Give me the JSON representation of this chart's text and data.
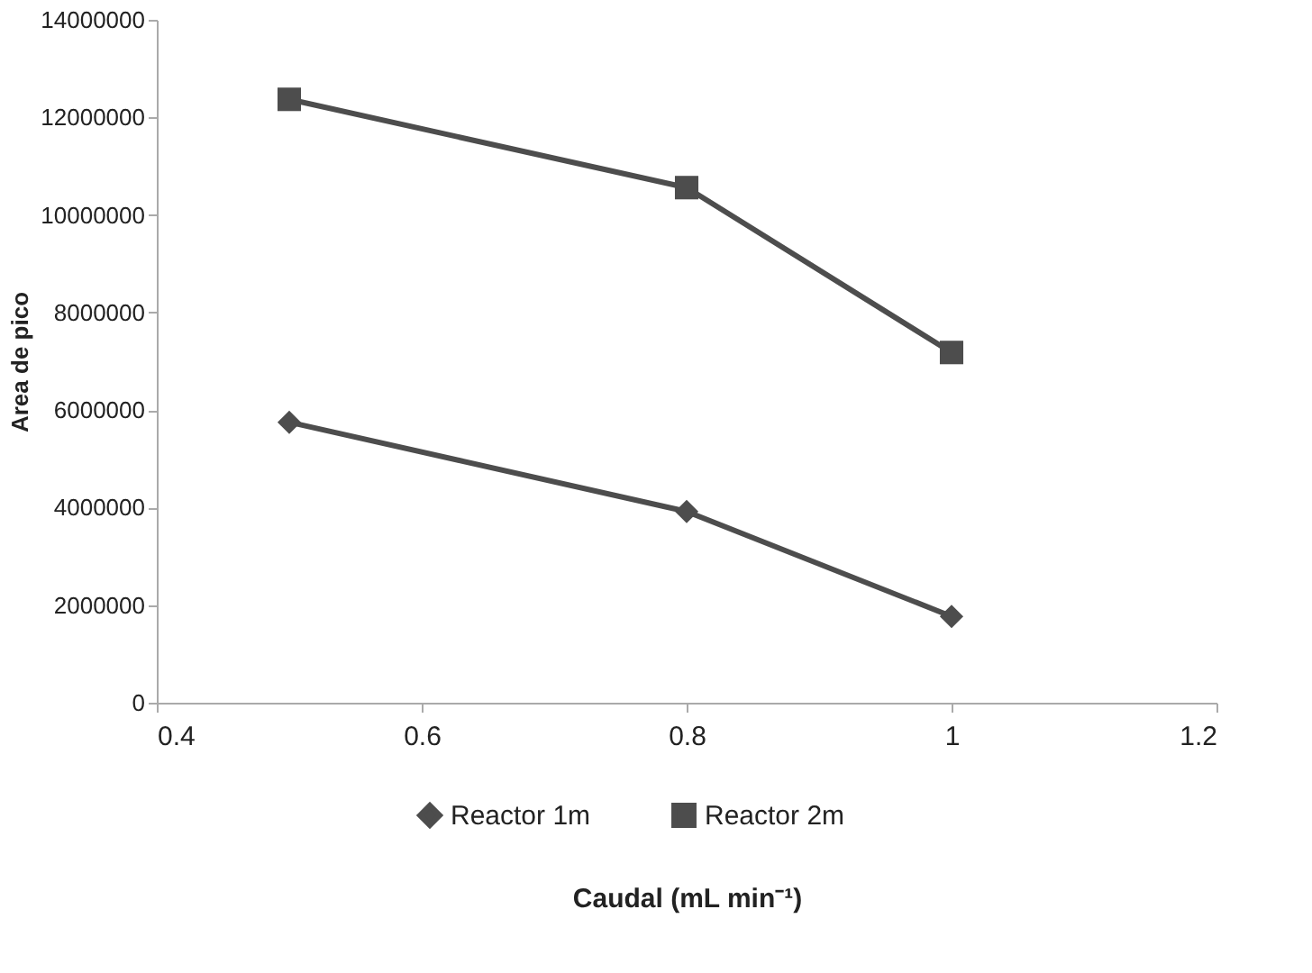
{
  "chart_data": {
    "type": "line",
    "xlabel": "Caudal (mL min⁻¹)",
    "ylabel": "Area de pico",
    "x": [
      0.5,
      0.8,
      1
    ],
    "series": [
      {
        "name": "Reactor 1m",
        "color": "#4d4d4d",
        "marker": "diamond",
        "values": [
          5750000,
          3920000,
          1770000
        ]
      },
      {
        "name": "Reactor 2m",
        "color": "#4d4d4d",
        "marker": "square",
        "values": [
          12370000,
          10560000,
          7180000
        ]
      }
    ],
    "xlim": [
      0.4,
      1.2
    ],
    "xticks": [
      0.4,
      0.6,
      0.8,
      1,
      1.2
    ],
    "ylim": [
      0,
      14000000
    ],
    "yticks": [
      0,
      2000000,
      4000000,
      6000000,
      8000000,
      10000000,
      12000000,
      14000000
    ],
    "grid": false,
    "legend": "bottom",
    "line_style": "solid"
  }
}
